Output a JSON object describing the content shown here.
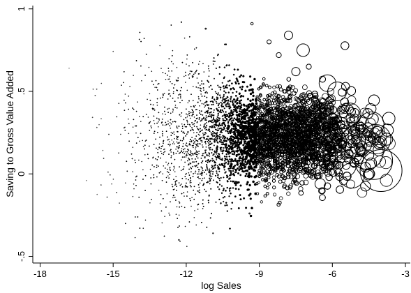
{
  "chart_data": {
    "type": "scatter",
    "xlabel": "log Sales",
    "ylabel": "Saving to Gross Value Added",
    "xlim": [
      -18.3,
      -2.8
    ],
    "ylim": [
      -0.54,
      1.02
    ],
    "xticks": [
      -18,
      -15,
      -12,
      -9,
      -6,
      -3
    ],
    "yticks": [
      1,
      0.5,
      0,
      -0.5
    ],
    "xtick_labels": [
      "-18",
      "-15",
      "-12",
      "-9",
      "-6",
      "-3"
    ],
    "ytick_labels": [
      "1",
      ".5",
      "0",
      "-.5"
    ],
    "grid": false,
    "legend": "none",
    "marker": "hollow circle, radius proportional to size weight",
    "color": "#000000",
    "series": [
      {
        "points": [
          {
            "x": -4.0,
            "y": 0.02,
            "s": 1.0
          },
          {
            "x": -4.3,
            "y": 0.08,
            "s": 0.9
          },
          {
            "x": -4.6,
            "y": 0.13,
            "s": 0.8
          },
          {
            "x": -5.0,
            "y": 0.2,
            "s": 0.75
          },
          {
            "x": -4.4,
            "y": 0.3,
            "s": 0.6
          },
          {
            "x": -4.2,
            "y": 0.21,
            "s": 0.7
          },
          {
            "x": -5.3,
            "y": 0.36,
            "s": 0.55
          },
          {
            "x": -5.8,
            "y": 0.5,
            "s": 0.45
          },
          {
            "x": -6.2,
            "y": 0.55,
            "s": 0.4
          },
          {
            "x": -7.2,
            "y": 0.75,
            "s": 0.3
          },
          {
            "x": -7.8,
            "y": 0.84,
            "s": 0.2
          },
          {
            "x": -5.5,
            "y": 0.05,
            "s": 0.55
          },
          {
            "x": -6.5,
            "y": -0.06,
            "s": 0.25
          },
          {
            "x": -5.2,
            "y": -0.01,
            "s": 0.6
          },
          {
            "x": -5.7,
            "y": 0.28,
            "s": 0.5
          },
          {
            "x": -6.8,
            "y": 0.42,
            "s": 0.35
          },
          {
            "x": -7.5,
            "y": 0.62,
            "s": 0.2
          },
          {
            "x": -8.2,
            "y": 0.72,
            "s": 0.12
          },
          {
            "x": -8.6,
            "y": 0.8,
            "s": 0.1
          },
          {
            "x": -9.3,
            "y": 0.91,
            "s": 0.06
          },
          {
            "x": -11.2,
            "y": 0.88,
            "s": 0.03
          },
          {
            "x": -12.2,
            "y": 0.92,
            "s": 0.02
          },
          {
            "x": -9.4,
            "y": -0.24,
            "s": 0.03
          },
          {
            "x": -10.9,
            "y": -0.36,
            "s": 0.02
          },
          {
            "x": -12.3,
            "y": -0.4,
            "s": 0.02
          },
          {
            "x": -8.5,
            "y": 0.01,
            "s": 0.1
          },
          {
            "x": -7.0,
            "y": 0.05,
            "s": 0.3
          },
          {
            "x": -7.9,
            "y": 0.35,
            "s": 0.2
          }
        ]
      }
    ]
  }
}
